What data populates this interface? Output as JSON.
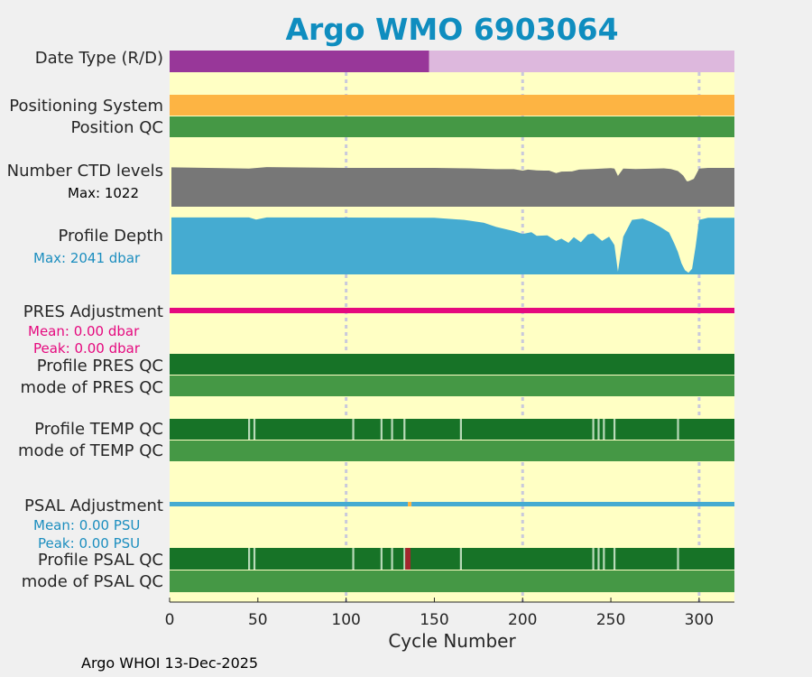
{
  "chart_data": {
    "type": "strip-timeline",
    "title": "Argo WMO 6903064",
    "xlabel": "Cycle Number",
    "xlim": [
      0,
      320
    ],
    "xticks": [
      0,
      50,
      100,
      150,
      200,
      250,
      300
    ],
    "grid_cycles": [
      100,
      200,
      300
    ],
    "colors": {
      "title": "#0f8dbf",
      "background": "#ffffc4",
      "delayed": "#983799",
      "realtime": "#ddb8dd",
      "positioning": "#fdb443",
      "qc_good": "#459845",
      "qc_dark": "#177327",
      "qc_light": "#b9dab9",
      "qc_bad": "#a3262d",
      "ctd": "#777777",
      "depth": "#45abd1",
      "pres_adjust": "#e5097e",
      "psal_adjust": "#45abd1",
      "psal_gap": "#fdb443",
      "max_ctd_text": "#000000",
      "max_depth_text": "#1c8ebf",
      "pres_text": "#e5097e",
      "psal_text": "#1c8ebf"
    },
    "rows": {
      "date_type": "Date Type (R/D)",
      "positioning": "Positioning System",
      "position_qc": "Position QC",
      "ctd_levels": "Number CTD levels",
      "profile_depth": "Profile Depth",
      "pres_adjustment": "PRES Adjustment",
      "profile_pres_qc": "Profile PRES QC",
      "mode_pres_qc": "mode of PRES QC",
      "profile_temp_qc": "Profile TEMP QC",
      "mode_temp_qc": "mode of TEMP QC",
      "psal_adjustment": "PSAL Adjustment",
      "profile_psal_qc": "Profile PSAL QC",
      "mode_psal_qc": "mode of PSAL QC"
    },
    "date_type": {
      "delayed_through_cycle": 147,
      "last_cycle": 320
    },
    "ctd_levels": {
      "max_label": "Max: 1022",
      "max": 1022,
      "scale_max": 1100,
      "profile": [
        [
          1,
          960
        ],
        [
          45,
          930
        ],
        [
          55,
          965
        ],
        [
          100,
          945
        ],
        [
          150,
          945
        ],
        [
          170,
          935
        ],
        [
          185,
          915
        ],
        [
          195,
          915
        ],
        [
          200,
          880
        ],
        [
          203,
          905
        ],
        [
          208,
          885
        ],
        [
          212,
          880
        ],
        [
          215,
          880
        ],
        [
          219,
          820
        ],
        [
          222,
          855
        ],
        [
          228,
          860
        ],
        [
          232,
          905
        ],
        [
          240,
          920
        ],
        [
          250,
          940
        ],
        [
          252,
          930
        ],
        [
          254,
          750
        ],
        [
          257,
          930
        ],
        [
          264,
          920
        ],
        [
          275,
          930
        ],
        [
          280,
          935
        ],
        [
          284,
          920
        ],
        [
          288,
          870
        ],
        [
          291,
          760
        ],
        [
          293,
          620
        ],
        [
          294,
          620
        ],
        [
          297,
          680
        ],
        [
          300,
          930
        ],
        [
          305,
          945
        ],
        [
          320,
          945
        ]
      ]
    },
    "profile_depth": {
      "max_label": "Max: 2041 dbar",
      "max_dbar": 2041,
      "scale_max": 2100,
      "profile": [
        [
          1,
          2040
        ],
        [
          45,
          2040
        ],
        [
          49,
          1960
        ],
        [
          55,
          2040
        ],
        [
          100,
          2035
        ],
        [
          150,
          2025
        ],
        [
          167,
          1950
        ],
        [
          178,
          1850
        ],
        [
          185,
          1700
        ],
        [
          195,
          1550
        ],
        [
          200,
          1450
        ],
        [
          205,
          1510
        ],
        [
          208,
          1380
        ],
        [
          214,
          1400
        ],
        [
          219,
          1200
        ],
        [
          222,
          1280
        ],
        [
          226,
          1130
        ],
        [
          229,
          1330
        ],
        [
          233,
          1150
        ],
        [
          237,
          1430
        ],
        [
          240,
          1470
        ],
        [
          245,
          1200
        ],
        [
          249,
          1350
        ],
        [
          252,
          1050
        ],
        [
          254,
          100
        ],
        [
          257,
          1350
        ],
        [
          262,
          1950
        ],
        [
          268,
          2000
        ],
        [
          273,
          1870
        ],
        [
          278,
          1700
        ],
        [
          283,
          1500
        ],
        [
          286,
          1100
        ],
        [
          288,
          800
        ],
        [
          290,
          400
        ],
        [
          292,
          150
        ],
        [
          294,
          60
        ],
        [
          296,
          200
        ],
        [
          298,
          1000
        ],
        [
          300,
          1950
        ],
        [
          305,
          2030
        ],
        [
          320,
          2030
        ]
      ]
    },
    "pres_adjustment": {
      "mean_label": "Mean: 0.00 dbar",
      "peak_label": "Peak: 0.00 dbar"
    },
    "temp_qc_light_cycles": [
      45,
      48,
      104,
      120,
      126,
      133,
      165,
      240,
      243,
      246,
      252,
      288
    ],
    "psal_adjustment": {
      "mean_label": "Mean: 0.00 PSU",
      "peak_label": "Peak: 0.00 PSU",
      "gap_cycle": 136
    },
    "psal_qc_light_cycles": [
      45,
      48,
      104,
      120,
      126,
      133,
      165,
      240,
      243,
      246,
      252,
      288
    ],
    "psal_qc_bad_cycles": [
      134,
      135,
      136
    ]
  },
  "footer": "Argo WHOI 13-Dec-2025"
}
